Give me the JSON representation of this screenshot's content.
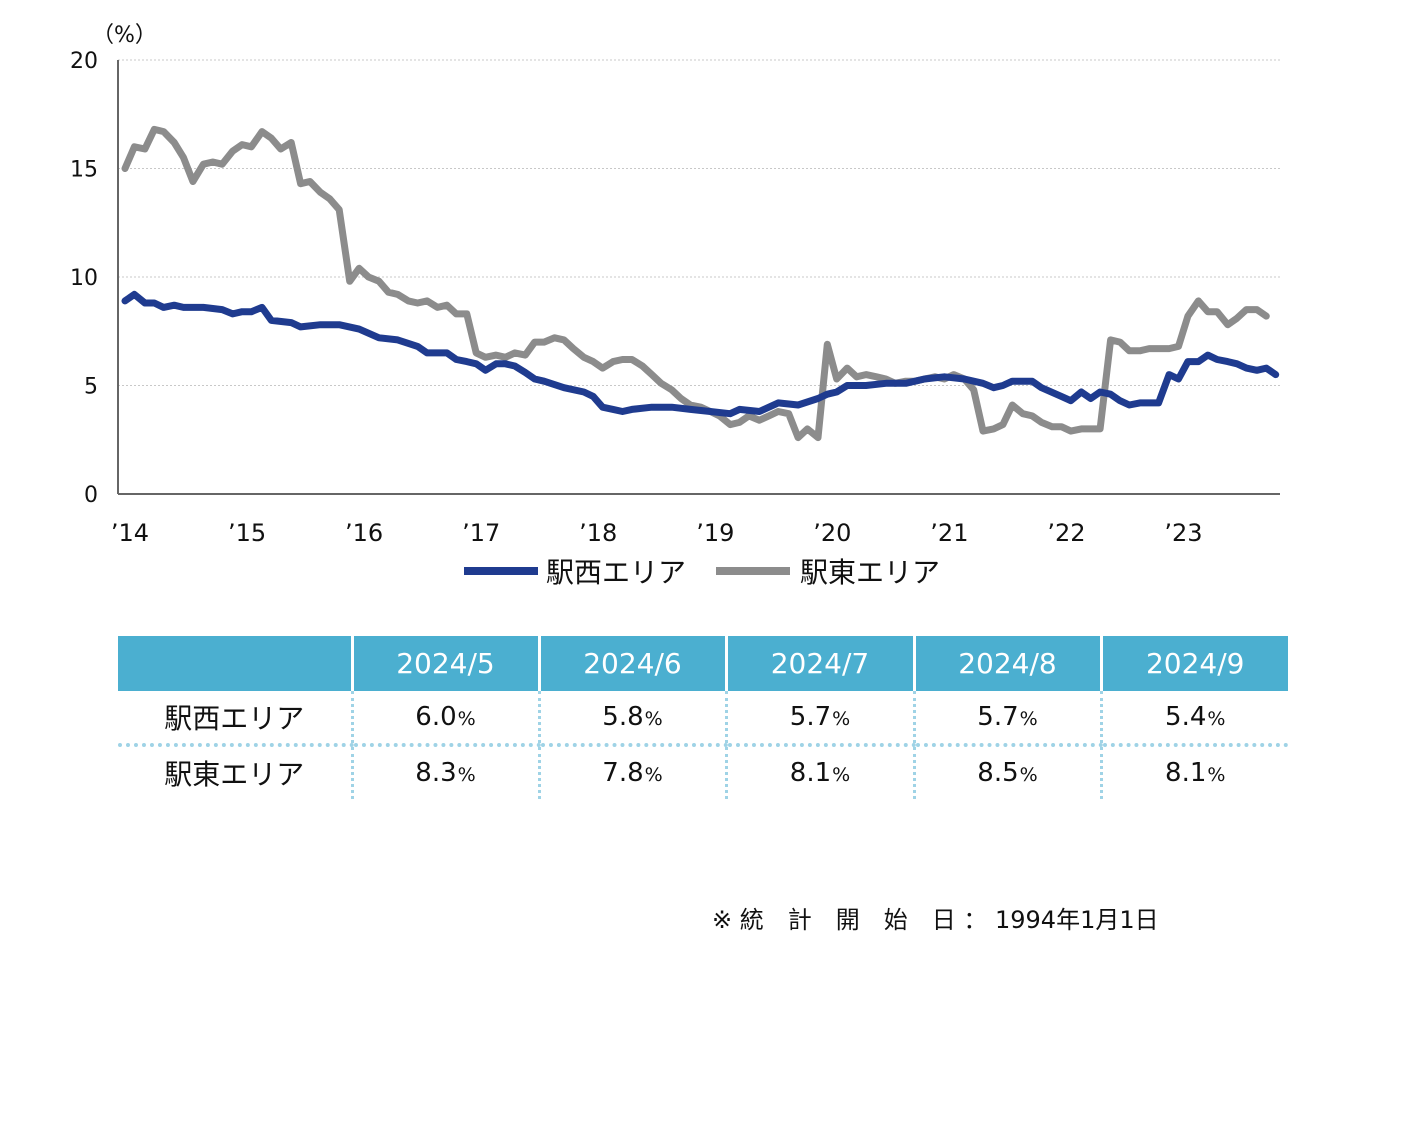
{
  "chart_data": {
    "type": "line",
    "unit_label": "（%）",
    "ylim": [
      0,
      20
    ],
    "yticks": [
      "0",
      "5",
      "10",
      "15",
      "20"
    ],
    "xlim": [
      2014.0,
      2023.85
    ],
    "xticks": [
      {
        "x": 2014,
        "label": "’14"
      },
      {
        "x": 2015,
        "label": "’15"
      },
      {
        "x": 2016,
        "label": "’16"
      },
      {
        "x": 2017,
        "label": "’17"
      },
      {
        "x": 2018,
        "label": "’18"
      },
      {
        "x": 2019,
        "label": "’19"
      },
      {
        "x": 2020,
        "label": "’20"
      },
      {
        "x": 2021,
        "label": "’21"
      },
      {
        "x": 2022,
        "label": "’22"
      },
      {
        "x": 2023,
        "label": "’23"
      }
    ],
    "grid": true,
    "legend_position": "bottom",
    "series": [
      {
        "name": "駅西エリア",
        "color": "#1f3b8f",
        "points": [
          [
            2014.0,
            8.9
          ],
          [
            2014.08,
            9.2
          ],
          [
            2014.17,
            8.8
          ],
          [
            2014.25,
            8.8
          ],
          [
            2014.33,
            8.6
          ],
          [
            2014.42,
            8.7
          ],
          [
            2014.5,
            8.6
          ],
          [
            2014.67,
            8.6
          ],
          [
            2014.83,
            8.5
          ],
          [
            2014.92,
            8.3
          ],
          [
            2015.0,
            8.4
          ],
          [
            2015.08,
            8.4
          ],
          [
            2015.17,
            8.6
          ],
          [
            2015.25,
            8.0
          ],
          [
            2015.42,
            7.9
          ],
          [
            2015.5,
            7.7
          ],
          [
            2015.67,
            7.8
          ],
          [
            2015.83,
            7.8
          ],
          [
            2016.0,
            7.6
          ],
          [
            2016.17,
            7.2
          ],
          [
            2016.33,
            7.1
          ],
          [
            2016.5,
            6.8
          ],
          [
            2016.58,
            6.5
          ],
          [
            2016.75,
            6.5
          ],
          [
            2016.83,
            6.2
          ],
          [
            2016.92,
            6.1
          ],
          [
            2017.0,
            6.0
          ],
          [
            2017.08,
            5.7
          ],
          [
            2017.17,
            6.0
          ],
          [
            2017.25,
            6.0
          ],
          [
            2017.33,
            5.9
          ],
          [
            2017.42,
            5.6
          ],
          [
            2017.5,
            5.3
          ],
          [
            2017.58,
            5.2
          ],
          [
            2017.75,
            4.9
          ],
          [
            2017.92,
            4.7
          ],
          [
            2018.0,
            4.5
          ],
          [
            2018.08,
            4.0
          ],
          [
            2018.17,
            3.9
          ],
          [
            2018.25,
            3.8
          ],
          [
            2018.33,
            3.9
          ],
          [
            2018.5,
            4.0
          ],
          [
            2018.67,
            4.0
          ],
          [
            2018.83,
            3.9
          ],
          [
            2019.0,
            3.8
          ],
          [
            2019.17,
            3.7
          ],
          [
            2019.25,
            3.9
          ],
          [
            2019.42,
            3.8
          ],
          [
            2019.58,
            4.2
          ],
          [
            2019.75,
            4.1
          ],
          [
            2019.92,
            4.4
          ],
          [
            2020.0,
            4.6
          ],
          [
            2020.08,
            4.7
          ],
          [
            2020.17,
            5.0
          ],
          [
            2020.33,
            5.0
          ],
          [
            2020.5,
            5.1
          ],
          [
            2020.67,
            5.1
          ],
          [
            2020.83,
            5.3
          ],
          [
            2021.0,
            5.4
          ],
          [
            2021.17,
            5.3
          ],
          [
            2021.33,
            5.1
          ],
          [
            2021.42,
            4.9
          ],
          [
            2021.5,
            5.0
          ],
          [
            2021.58,
            5.2
          ],
          [
            2021.75,
            5.2
          ],
          [
            2021.83,
            4.9
          ],
          [
            2022.0,
            4.5
          ],
          [
            2022.08,
            4.3
          ],
          [
            2022.17,
            4.7
          ],
          [
            2022.25,
            4.4
          ],
          [
            2022.33,
            4.7
          ],
          [
            2022.42,
            4.6
          ],
          [
            2022.5,
            4.3
          ],
          [
            2022.58,
            4.1
          ],
          [
            2022.67,
            4.2
          ],
          [
            2022.83,
            4.2
          ],
          [
            2022.92,
            5.5
          ],
          [
            2023.0,
            5.3
          ],
          [
            2023.08,
            6.1
          ],
          [
            2023.17,
            6.1
          ],
          [
            2023.25,
            6.4
          ],
          [
            2023.33,
            6.2
          ],
          [
            2023.42,
            6.1
          ],
          [
            2023.5,
            6.0
          ],
          [
            2023.58,
            5.8
          ],
          [
            2023.67,
            5.7
          ],
          [
            2023.75,
            5.8
          ],
          [
            2023.83,
            5.5
          ]
        ]
      },
      {
        "name": "駅東エリア",
        "color": "#8c8c8c",
        "points": [
          [
            2014.0,
            15.0
          ],
          [
            2014.08,
            16.0
          ],
          [
            2014.17,
            15.9
          ],
          [
            2014.25,
            16.8
          ],
          [
            2014.33,
            16.7
          ],
          [
            2014.42,
            16.2
          ],
          [
            2014.5,
            15.5
          ],
          [
            2014.58,
            14.4
          ],
          [
            2014.67,
            15.2
          ],
          [
            2014.75,
            15.3
          ],
          [
            2014.83,
            15.2
          ],
          [
            2014.92,
            15.8
          ],
          [
            2015.0,
            16.1
          ],
          [
            2015.08,
            16.0
          ],
          [
            2015.17,
            16.7
          ],
          [
            2015.25,
            16.4
          ],
          [
            2015.33,
            15.9
          ],
          [
            2015.42,
            16.2
          ],
          [
            2015.5,
            14.3
          ],
          [
            2015.58,
            14.4
          ],
          [
            2015.67,
            13.9
          ],
          [
            2015.75,
            13.6
          ],
          [
            2015.83,
            13.1
          ],
          [
            2015.92,
            9.8
          ],
          [
            2016.0,
            10.4
          ],
          [
            2016.08,
            10.0
          ],
          [
            2016.17,
            9.8
          ],
          [
            2016.25,
            9.3
          ],
          [
            2016.33,
            9.2
          ],
          [
            2016.42,
            8.9
          ],
          [
            2016.5,
            8.8
          ],
          [
            2016.58,
            8.9
          ],
          [
            2016.67,
            8.6
          ],
          [
            2016.75,
            8.7
          ],
          [
            2016.83,
            8.3
          ],
          [
            2016.92,
            8.3
          ],
          [
            2017.0,
            6.5
          ],
          [
            2017.08,
            6.3
          ],
          [
            2017.17,
            6.4
          ],
          [
            2017.25,
            6.3
          ],
          [
            2017.33,
            6.5
          ],
          [
            2017.42,
            6.4
          ],
          [
            2017.5,
            7.0
          ],
          [
            2017.58,
            7.0
          ],
          [
            2017.67,
            7.2
          ],
          [
            2017.75,
            7.1
          ],
          [
            2017.83,
            6.7
          ],
          [
            2017.92,
            6.3
          ],
          [
            2018.0,
            6.1
          ],
          [
            2018.08,
            5.8
          ],
          [
            2018.17,
            6.1
          ],
          [
            2018.25,
            6.2
          ],
          [
            2018.33,
            6.2
          ],
          [
            2018.42,
            5.9
          ],
          [
            2018.5,
            5.5
          ],
          [
            2018.58,
            5.1
          ],
          [
            2018.67,
            4.8
          ],
          [
            2018.75,
            4.4
          ],
          [
            2018.83,
            4.1
          ],
          [
            2018.92,
            4.0
          ],
          [
            2019.0,
            3.8
          ],
          [
            2019.08,
            3.6
          ],
          [
            2019.17,
            3.2
          ],
          [
            2019.25,
            3.3
          ],
          [
            2019.33,
            3.6
          ],
          [
            2019.42,
            3.4
          ],
          [
            2019.5,
            3.6
          ],
          [
            2019.58,
            3.8
          ],
          [
            2019.67,
            3.7
          ],
          [
            2019.75,
            2.6
          ],
          [
            2019.83,
            3.0
          ],
          [
            2019.92,
            2.6
          ],
          [
            2020.0,
            6.9
          ],
          [
            2020.08,
            5.3
          ],
          [
            2020.17,
            5.8
          ],
          [
            2020.25,
            5.4
          ],
          [
            2020.33,
            5.5
          ],
          [
            2020.42,
            5.4
          ],
          [
            2020.5,
            5.3
          ],
          [
            2020.58,
            5.1
          ],
          [
            2020.67,
            5.2
          ],
          [
            2020.75,
            5.2
          ],
          [
            2020.83,
            5.3
          ],
          [
            2020.92,
            5.4
          ],
          [
            2021.0,
            5.3
          ],
          [
            2021.08,
            5.5
          ],
          [
            2021.17,
            5.3
          ],
          [
            2021.25,
            4.8
          ],
          [
            2021.33,
            2.9
          ],
          [
            2021.42,
            3.0
          ],
          [
            2021.5,
            3.2
          ],
          [
            2021.58,
            4.1
          ],
          [
            2021.67,
            3.7
          ],
          [
            2021.75,
            3.6
          ],
          [
            2021.83,
            3.3
          ],
          [
            2021.92,
            3.1
          ],
          [
            2022.0,
            3.1
          ],
          [
            2022.08,
            2.9
          ],
          [
            2022.17,
            3.0
          ],
          [
            2022.25,
            3.0
          ],
          [
            2022.33,
            3.0
          ],
          [
            2022.42,
            7.1
          ],
          [
            2022.5,
            7.0
          ],
          [
            2022.58,
            6.6
          ],
          [
            2022.67,
            6.6
          ],
          [
            2022.75,
            6.7
          ],
          [
            2022.83,
            6.7
          ],
          [
            2022.92,
            6.7
          ],
          [
            2023.0,
            6.8
          ],
          [
            2023.08,
            8.2
          ],
          [
            2023.17,
            8.9
          ],
          [
            2023.25,
            8.4
          ],
          [
            2023.33,
            8.4
          ],
          [
            2023.42,
            7.8
          ],
          [
            2023.5,
            8.1
          ],
          [
            2023.58,
            8.5
          ],
          [
            2023.67,
            8.5
          ],
          [
            2023.75,
            8.2
          ]
        ]
      }
    ]
  },
  "table": {
    "columns": [
      "2024/5",
      "2024/6",
      "2024/7",
      "2024/8",
      "2024/9"
    ],
    "percent_sign": "%",
    "rows": [
      {
        "label": "駅西エリア",
        "values": [
          "6.0",
          "5.8",
          "5.7",
          "5.7",
          "5.4"
        ]
      },
      {
        "label": "駅東エリア",
        "values": [
          "8.3",
          "7.8",
          "8.1",
          "8.5",
          "8.1"
        ]
      }
    ]
  },
  "footnote": "※ 統　計　開　始　日 ： 1994年1月1日"
}
